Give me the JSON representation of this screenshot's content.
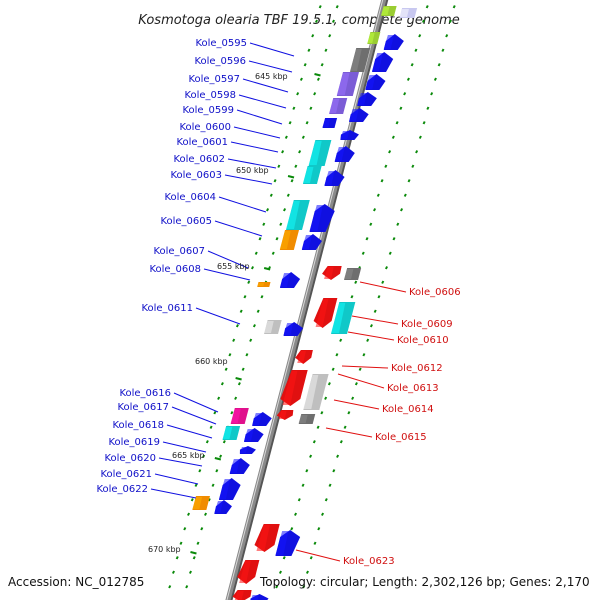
{
  "header": {
    "title": "Kosmotoga olearia TBF 19.5.1, complete genome"
  },
  "footer": {
    "accession": "Accession: NC_012785",
    "summary": "Topology: circular; Length: 2,302,126 bp; Genes: 2,170"
  },
  "scale_labels": [
    "645 kbp",
    "650 kbp",
    "655 kbp",
    "660 kbp",
    "665 kbp",
    "670 kbp"
  ],
  "loci_left": [
    "Kole_0595",
    "Kole_0596",
    "Kole_0597",
    "Kole_0598",
    "Kole_0599",
    "Kole_0600",
    "Kole_0601",
    "Kole_0602",
    "Kole_0603",
    "Kole_0604",
    "Kole_0605",
    "Kole_0607",
    "Kole_0608",
    "Kole_0611",
    "Kole_0616",
    "Kole_0617",
    "Kole_0618",
    "Kole_0619",
    "Kole_0620",
    "Kole_0621",
    "Kole_0622"
  ],
  "loci_right": [
    "Kole_0606",
    "Kole_0609",
    "Kole_0610",
    "Kole_0612",
    "Kole_0613",
    "Kole_0614",
    "Kole_0615",
    "Kole_0623"
  ],
  "colors": {
    "forward_strand": "#1010e0",
    "reverse_strand": "#e01010",
    "backbone": "#8a8a8a",
    "tick": "#0a8a0a",
    "teal": "#10c8c8",
    "purple": "#7b5cd6",
    "gray": "#6e6e6e",
    "light_gray": "#bfbfbf",
    "orange": "#f08c00",
    "magenta": "#e0108c",
    "lime": "#9acd32"
  }
}
